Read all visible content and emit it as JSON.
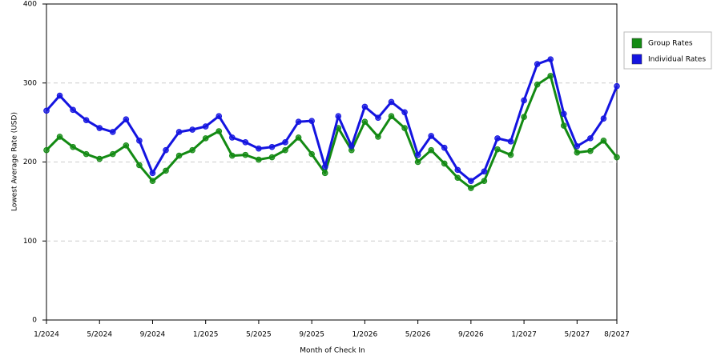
{
  "chart_data": {
    "type": "line",
    "x_label": "Month of Check In",
    "y_label": "Lowest Average Rate (USD)",
    "categories": [
      "1/2024",
      null,
      null,
      null,
      "5/2024",
      null,
      null,
      null,
      "9/2024",
      null,
      null,
      null,
      "1/2025",
      null,
      null,
      null,
      "5/2025",
      null,
      null,
      null,
      "9/2025",
      null,
      null,
      null,
      "1/2026",
      null,
      null,
      null,
      "5/2026",
      null,
      null,
      null,
      "9/2026",
      null,
      null,
      null,
      "1/2027",
      null,
      null,
      null,
      "5/2027",
      null,
      null,
      "8/2027"
    ],
    "series": [
      {
        "name": "Group Rates",
        "color": "#138a13",
        "values": [
          215,
          232,
          219,
          210,
          204,
          210,
          221,
          196,
          176,
          189,
          208,
          215,
          230,
          239,
          208,
          209,
          203,
          206,
          215,
          231,
          210,
          186,
          243,
          215,
          251,
          232,
          258,
          243,
          200,
          215,
          198,
          180,
          167,
          176,
          216,
          209,
          257,
          298,
          309,
          246,
          212,
          214,
          227,
          206
        ]
      },
      {
        "name": "Individual Rates",
        "color": "#1414e0",
        "values": [
          265,
          284,
          266,
          253,
          243,
          238,
          254,
          227,
          186,
          215,
          238,
          241,
          245,
          258,
          231,
          225,
          217,
          219,
          225,
          251,
          252,
          194,
          258,
          220,
          270,
          256,
          276,
          263,
          209,
          233,
          218,
          190,
          176,
          188,
          230,
          226,
          278,
          324,
          330,
          261,
          220,
          230,
          255,
          296
        ]
      }
    ],
    "ylim": [
      0,
      400
    ],
    "yticks": [
      0,
      100,
      200,
      300,
      400
    ],
    "grid": true,
    "legend": "right"
  }
}
